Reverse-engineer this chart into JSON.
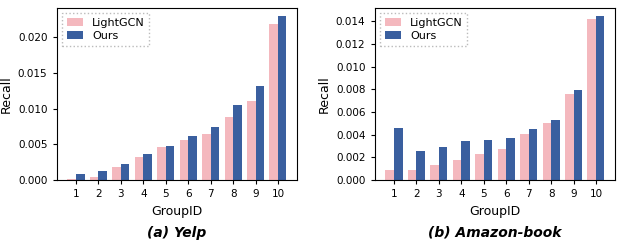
{
  "yelp": {
    "lightgcn": [
      0.0001,
      0.0004,
      0.0018,
      0.0032,
      0.0046,
      0.0056,
      0.0065,
      0.0088,
      0.011,
      0.0218
    ],
    "ours": [
      0.0008,
      0.0012,
      0.0022,
      0.0036,
      0.0048,
      0.0062,
      0.0074,
      0.0105,
      0.0131,
      0.023
    ]
  },
  "amazon": {
    "lightgcn": [
      0.0009,
      0.0009,
      0.0013,
      0.0018,
      0.0023,
      0.0027,
      0.0041,
      0.005,
      0.0076,
      0.0142
    ],
    "ours": [
      0.0046,
      0.0026,
      0.0029,
      0.0034,
      0.0035,
      0.0037,
      0.0045,
      0.0053,
      0.0079,
      0.0145
    ]
  },
  "groups": [
    1,
    2,
    3,
    4,
    5,
    6,
    7,
    8,
    9,
    10
  ],
  "lightgcn_color": "#f4b8be",
  "ours_color": "#3a5f9f",
  "xlabel": "GroupID",
  "ylabel": "Recall",
  "title_yelp": "(a) Yelp",
  "title_amazon": "(b) Amazon-book",
  "legend_labels": [
    "LightGCN",
    "Ours"
  ],
  "bar_width": 0.38
}
